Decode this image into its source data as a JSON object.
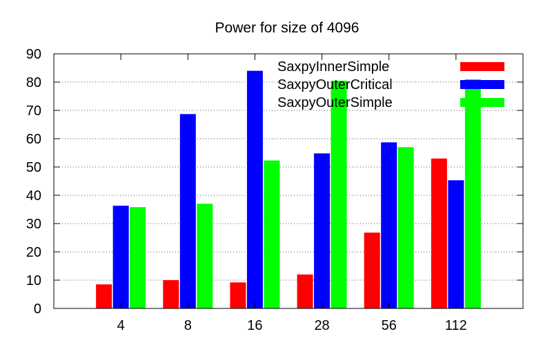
{
  "chart_data": {
    "type": "bar",
    "title": "Power for size of 4096",
    "xlabel": "",
    "ylabel": "",
    "ylim": [
      0,
      90
    ],
    "yticks": [
      0,
      10,
      20,
      30,
      40,
      50,
      60,
      70,
      80,
      90
    ],
    "grid": "y-dotted",
    "legend_position": "top-right",
    "categories": [
      "4",
      "8",
      "16",
      "28",
      "56",
      "112"
    ],
    "series": [
      {
        "name": "SaxpyInnerSimple",
        "color": "#ff0000",
        "values": [
          8.5,
          10,
          9.2,
          12,
          26.8,
          53
        ]
      },
      {
        "name": "SaxpyOuterCritical",
        "color": "#0000ff",
        "values": [
          36.3,
          68.7,
          84,
          54.8,
          58.7,
          45.3
        ]
      },
      {
        "name": "SaxpyOuterSimple",
        "color": "#00ff00",
        "values": [
          35.8,
          37,
          52.3,
          80.5,
          57,
          81
        ]
      }
    ]
  }
}
